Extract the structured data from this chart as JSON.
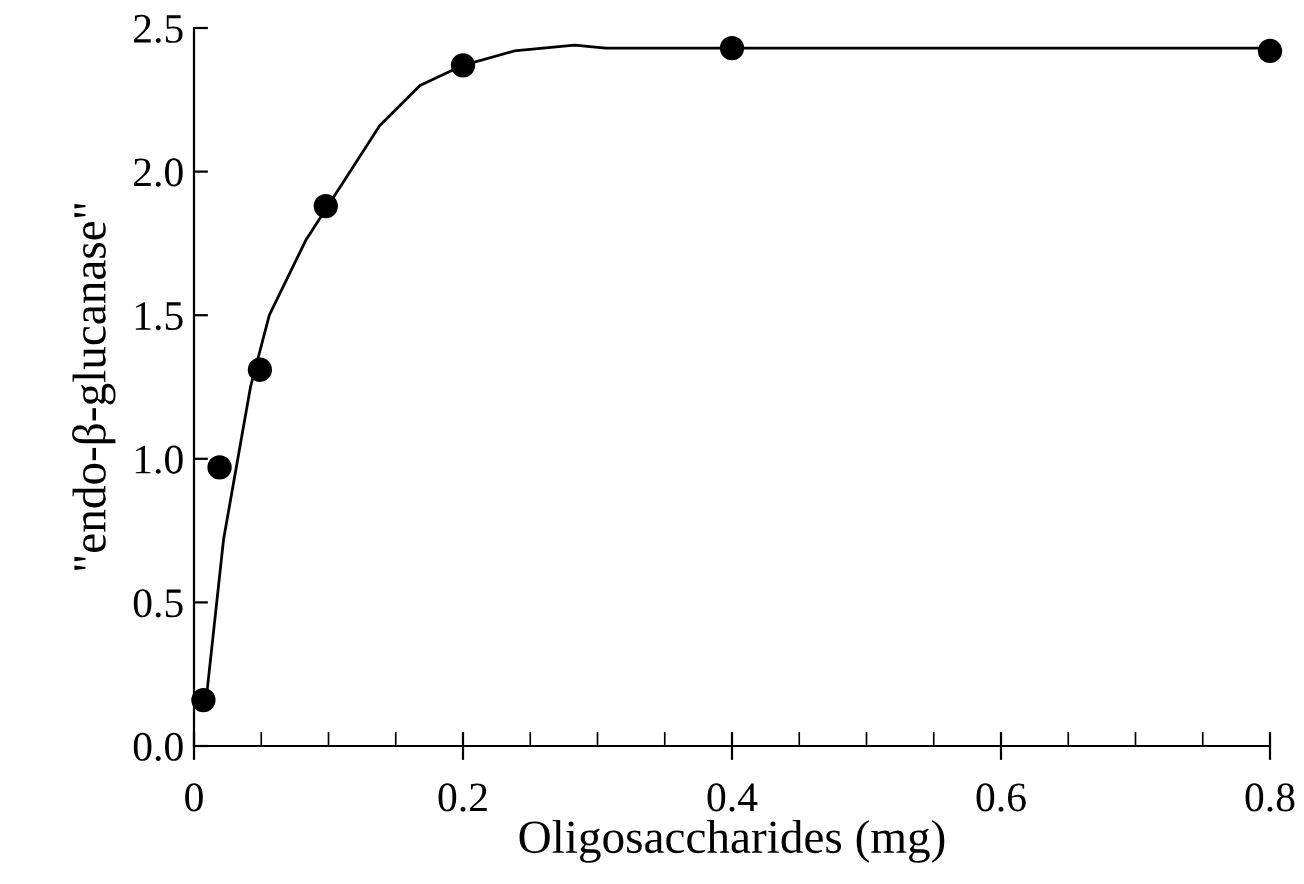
{
  "chart_data": {
    "type": "scatter",
    "xlabel": "Oligosaccharides (mg)",
    "ylabel": "\"endo-β-glucanase\"",
    "series": [
      {
        "type": "line",
        "color": "#000000",
        "marker": "none",
        "line_style": "solid",
        "x": [
          0.009,
          0.022,
          0.042,
          0.056,
          0.083,
          0.138,
          0.168,
          0.2,
          0.238,
          0.283,
          0.306,
          0.4,
          0.8
        ],
        "values": [
          0.16,
          0.72,
          1.25,
          1.5,
          1.76,
          2.16,
          2.3,
          2.37,
          2.42,
          2.44,
          2.43,
          2.43,
          2.43
        ]
      },
      {
        "color": "#000000",
        "marker": "circle",
        "x": [
          0.007,
          0.019,
          0.049,
          0.098,
          0.2,
          0.4,
          0.8
        ],
        "values": [
          0.16,
          0.97,
          1.31,
          1.88,
          2.37,
          2.43,
          2.42
        ]
      }
    ],
    "xlim": [
      0,
      0.8
    ],
    "ylim": [
      0,
      2.5
    ],
    "xticks": [
      0,
      {
        "value": 0.05,
        "label": null
      },
      {
        "value": 0.1,
        "label": null
      },
      {
        "value": 0.15,
        "label": null
      },
      0.2,
      {
        "value": 0.25,
        "label": null
      },
      {
        "value": 0.3,
        "label": null
      },
      {
        "value": 0.35,
        "label": null
      },
      0.4,
      {
        "value": 0.45,
        "label": null
      },
      {
        "value": 0.5,
        "label": null
      },
      {
        "value": 0.55,
        "label": null
      },
      0.6,
      {
        "value": 0.65,
        "label": null
      },
      {
        "value": 0.7,
        "label": null
      },
      {
        "value": 0.75,
        "label": null
      },
      0.8
    ],
    "yticks": [
      {
        "value": 0,
        "label": "0.0"
      },
      0.5,
      {
        "value": 1,
        "label": "1.0"
      },
      1.5,
      {
        "value": 2,
        "label": "2.0"
      },
      2.5
    ],
    "grid": false,
    "legend": false
  }
}
